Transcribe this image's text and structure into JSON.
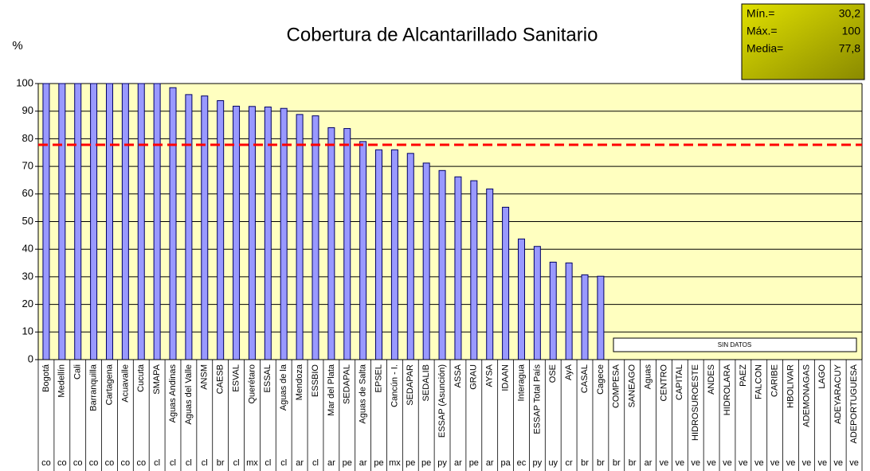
{
  "chart_data": {
    "type": "bar",
    "title": "Cobertura de Alcantarillado Sanitario",
    "y_label": "%",
    "categories": [
      "Bogotá",
      "Medellín",
      "Cali",
      "Barranquilla",
      "Cartagena",
      "Acuavalle",
      "Cucuta",
      "SMAPA",
      "Aguas Andinas",
      "Aguas del Valle",
      "ANSM",
      "CAESB",
      "ESVAL",
      "Querétaro",
      "ESSAL",
      "Aguas de la",
      "Mendoza",
      "ESSBIO",
      "Mar del Plata",
      "SEDAPAL",
      "Aguas de Salta",
      "EPSEL",
      "Cancún - I.",
      "SEDAPAR",
      "SEDALIB",
      "ESSAP (Asunción)",
      "ASSA",
      "GRAU",
      "AYSA",
      "IDAAN",
      "Interagua",
      "ESSAP Total País",
      "OSE",
      "AyA",
      "CASAL",
      "Cagece",
      "COMPESA",
      "SANEAGO",
      "Aguas",
      "CENTRO",
      "CAPITAL",
      "HIDROSUROESTE",
      "ANDES",
      "HIDROLARA",
      "PAEZ",
      "FALCON",
      "CARIBE",
      "HBOLIVAR",
      "ADEMONAGAS",
      "LAGO",
      "ADEYARACUY",
      "ADEPORTUGUESA"
    ],
    "countries": [
      "co",
      "co",
      "co",
      "co",
      "co",
      "co",
      "co",
      "cl",
      "cl",
      "cl",
      "cl",
      "br",
      "cl",
      "mx",
      "cl",
      "cl",
      "ar",
      "cl",
      "ar",
      "pe",
      "ar",
      "pe",
      "mx",
      "pe",
      "pe",
      "py",
      "ar",
      "pe",
      "ar",
      "pa",
      "ec",
      "py",
      "uy",
      "cr",
      "br",
      "br",
      "br",
      "br",
      "ar",
      "ve",
      "ve",
      "ve",
      "ve",
      "ve",
      "ve",
      "ve",
      "ve",
      "ve",
      "ve",
      "ve",
      "ve",
      "ve"
    ],
    "values": [
      100,
      100,
      100,
      100,
      100,
      100,
      100,
      100,
      98.5,
      96,
      95.5,
      93.8,
      91.8,
      91.7,
      91.5,
      91,
      88.8,
      88.3,
      84,
      83.7,
      79,
      76,
      76,
      74.7,
      71.2,
      68.5,
      66.2,
      64.8,
      61.8,
      55.2,
      43.7,
      41,
      35.3,
      35,
      30.7,
      30.2,
      null,
      null,
      null,
      null,
      null,
      null,
      null,
      null,
      null,
      null,
      null,
      null,
      null,
      null,
      null,
      null
    ],
    "color": "#9999ff",
    "ylim": [
      0,
      100
    ],
    "yticks": [
      0,
      10,
      20,
      30,
      40,
      50,
      60,
      70,
      80,
      90,
      100
    ],
    "grid": true,
    "no_data_label": "SIN DATOS",
    "stats": [
      {
        "label": "Mín.=",
        "value": 30.2,
        "value_label": "30,2"
      },
      {
        "label": "Máx.=",
        "value": 100,
        "value_label": "100"
      },
      {
        "label": "Media=",
        "value": 77.8,
        "value_label": "77,8"
      }
    ],
    "mean_line_color": "#ff0000"
  }
}
